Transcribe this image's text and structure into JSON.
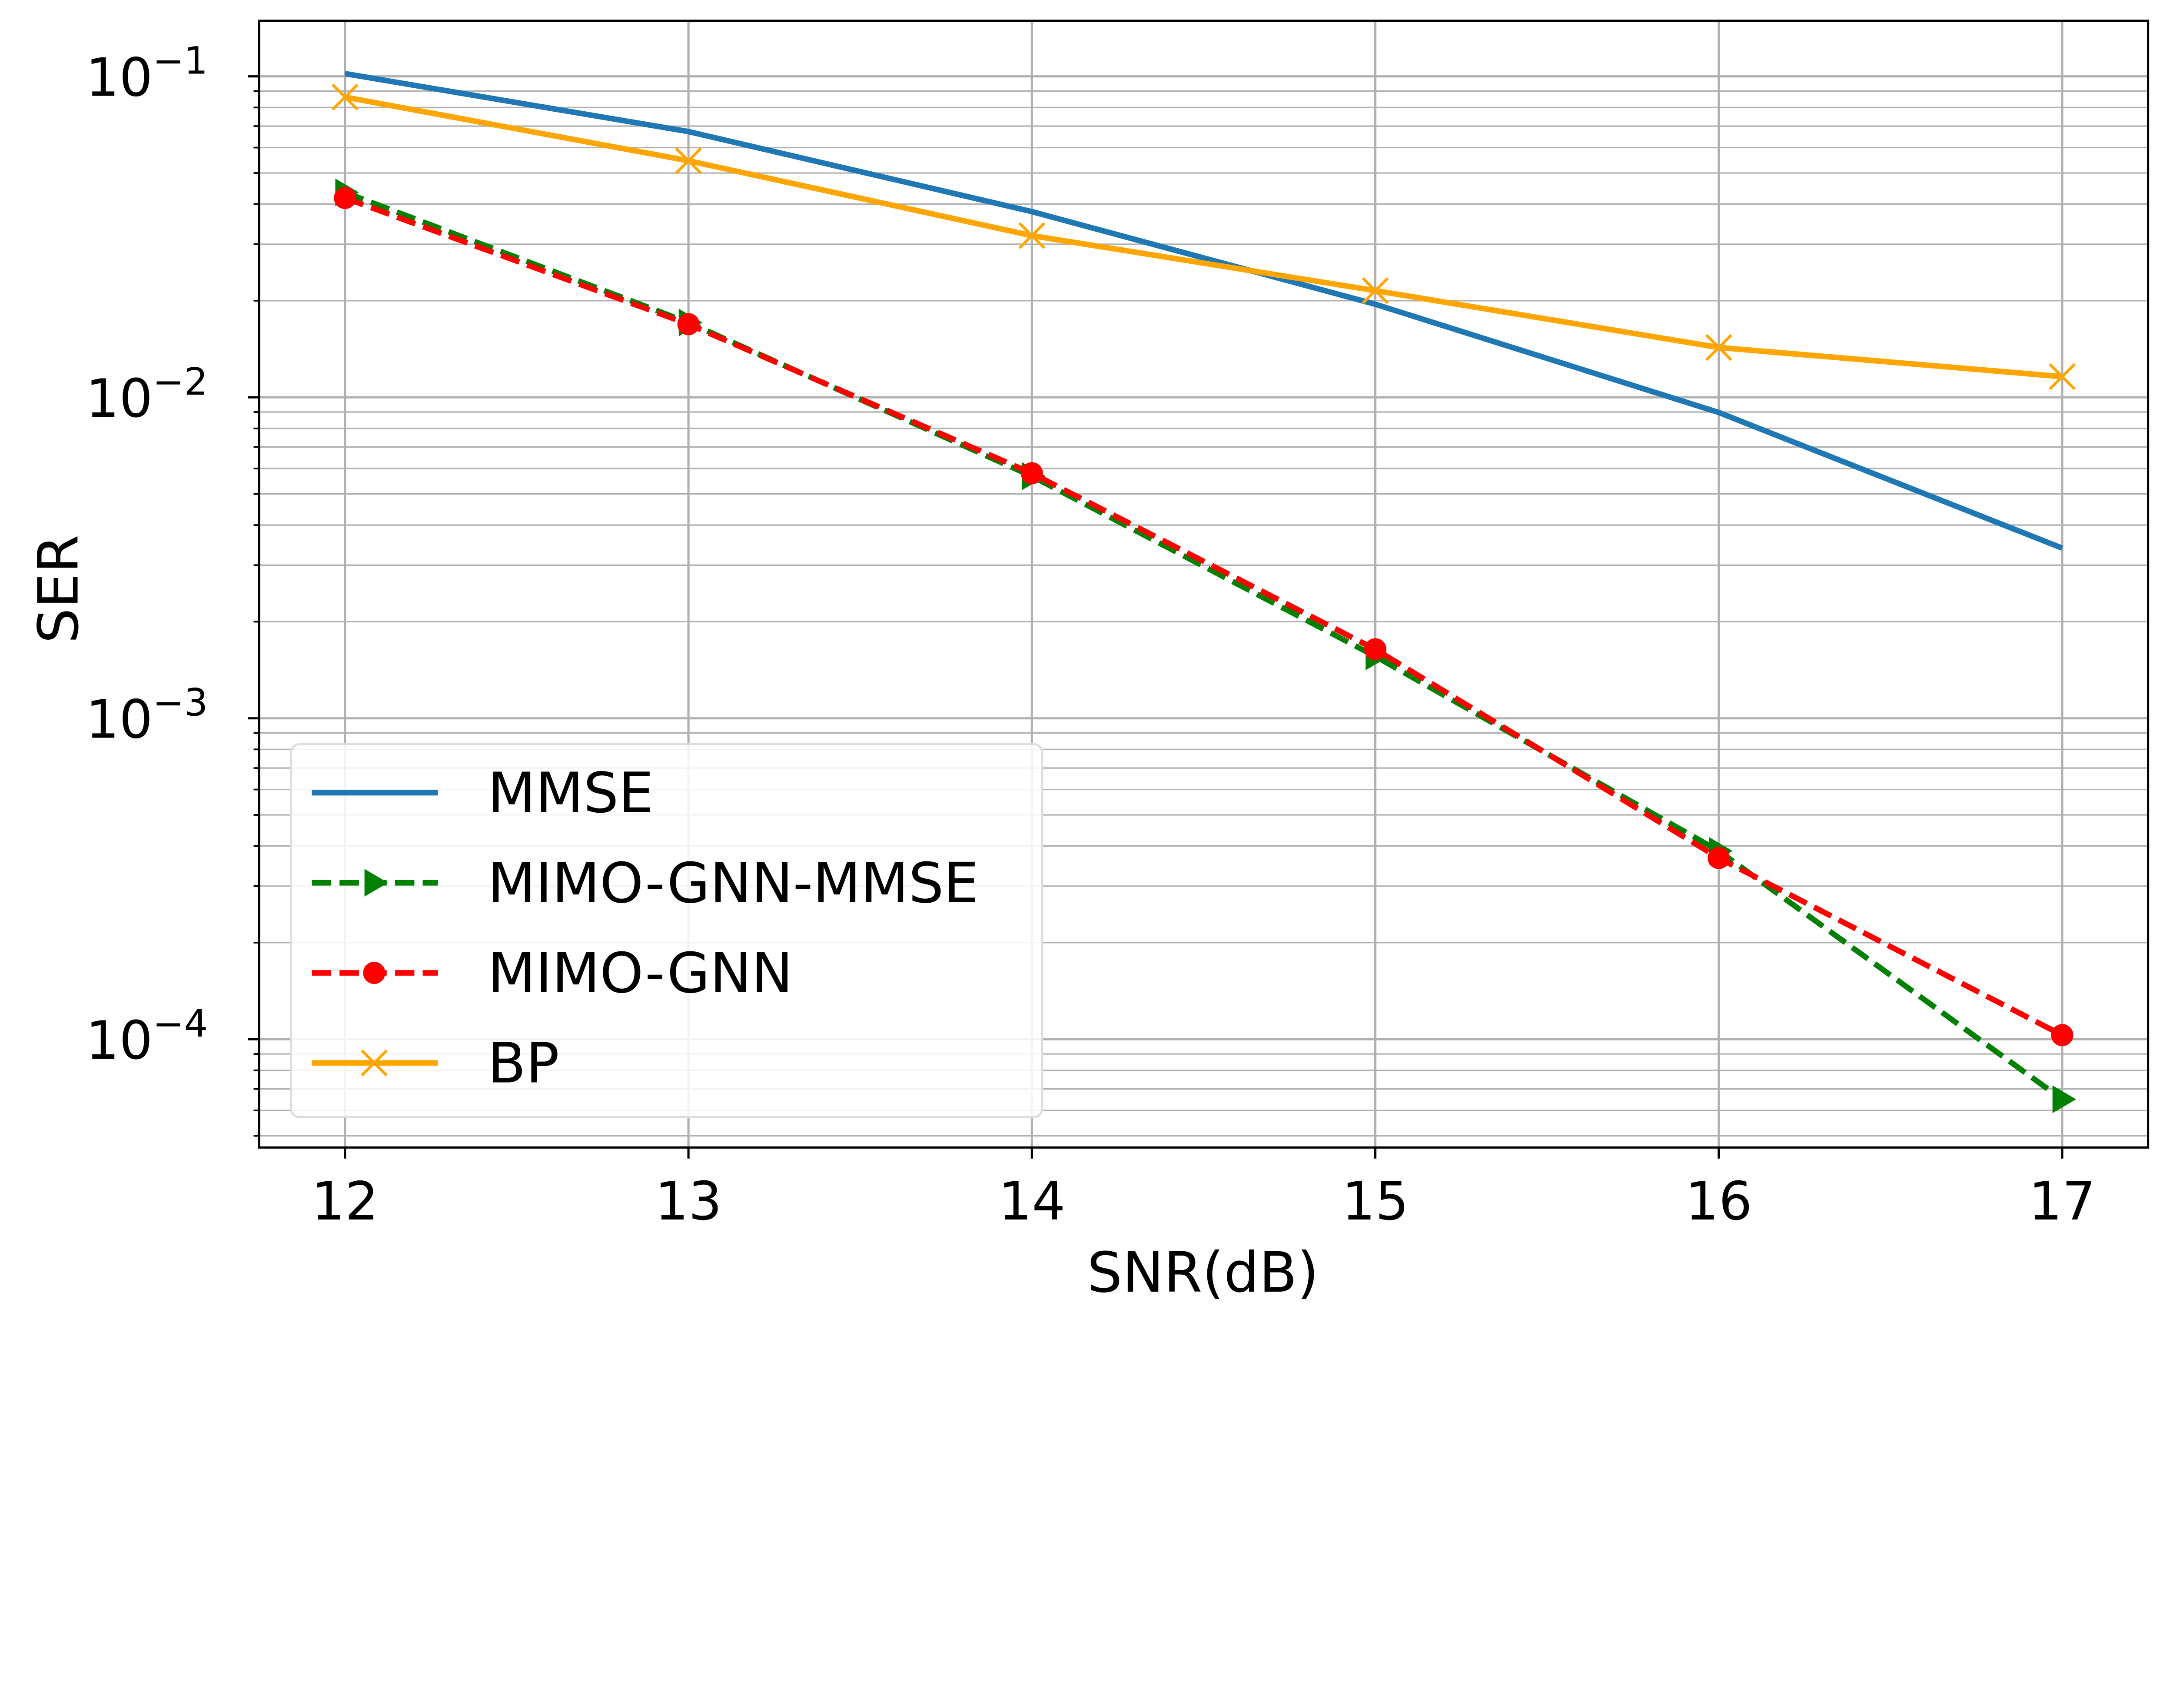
{
  "chart_data": {
    "type": "line",
    "xlabel": "SNR(dB)",
    "ylabel": "SER",
    "x": [
      12,
      13,
      14,
      15,
      16,
      17
    ],
    "xlim": [
      11.75,
      17.25
    ],
    "ylim": [
      4.6e-05,
      0.149
    ],
    "yscale": "log",
    "grid": true,
    "x_ticks": [
      "12",
      "13",
      "14",
      "15",
      "16",
      "17"
    ],
    "y_ticks": [
      {
        "base": "10",
        "exp": "−1",
        "value": 0.1
      },
      {
        "base": "10",
        "exp": "−2",
        "value": 0.01
      },
      {
        "base": "10",
        "exp": "−3",
        "value": 0.001
      },
      {
        "base": "10",
        "exp": "−4",
        "value": 0.0001
      }
    ],
    "legend_position": "lower-left",
    "series": [
      {
        "name": "MMSE",
        "color": "#1f77b4",
        "dash": "solid",
        "marker": "none",
        "values": [
          0.102,
          0.0673,
          0.0379,
          0.0195,
          0.00897,
          0.00339
        ]
      },
      {
        "name": "MIMO-GNN-MMSE",
        "color": "#008000",
        "dash": "dashed",
        "marker": "triangle-right",
        "values": [
          0.0435,
          0.0171,
          0.00568,
          0.00156,
          0.000386,
          6.5e-05
        ]
      },
      {
        "name": "MIMO-GNN",
        "color": "#ff0000",
        "dash": "dashed",
        "marker": "circle",
        "values": [
          0.0418,
          0.0169,
          0.0058,
          0.00164,
          0.000367,
          0.000103
        ]
      },
      {
        "name": "BP",
        "color": "#ffa500",
        "dash": "solid",
        "marker": "x",
        "values": [
          0.0862,
          0.0546,
          0.0319,
          0.0215,
          0.0143,
          0.0116
        ]
      }
    ]
  }
}
